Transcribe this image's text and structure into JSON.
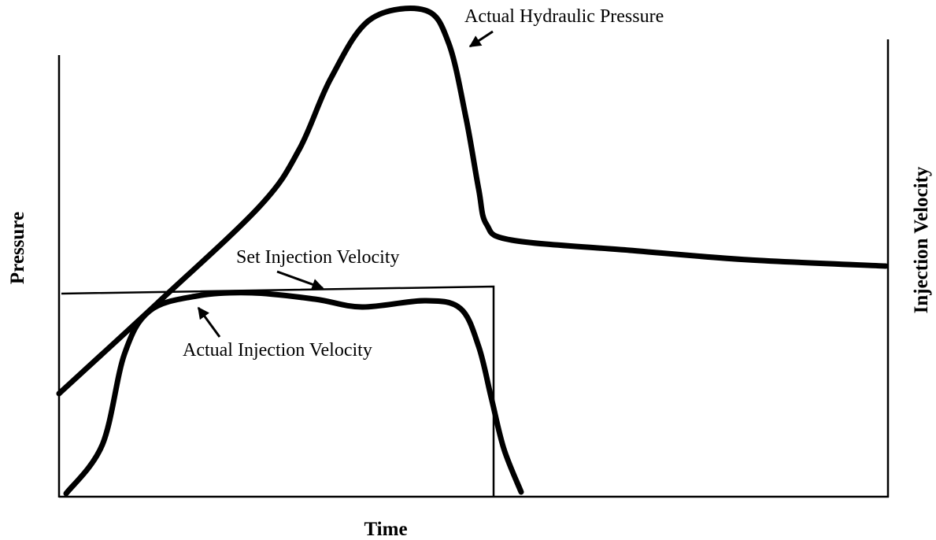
{
  "diagram": {
    "y_axis_label": "Pressure",
    "y2_axis_label": "Injection Velocity",
    "x_axis_label": "Time",
    "annotations": [
      "Actual Hydraulic Pressure",
      "Set Injection Velocity",
      "Actual Injection Velocity"
    ]
  }
}
